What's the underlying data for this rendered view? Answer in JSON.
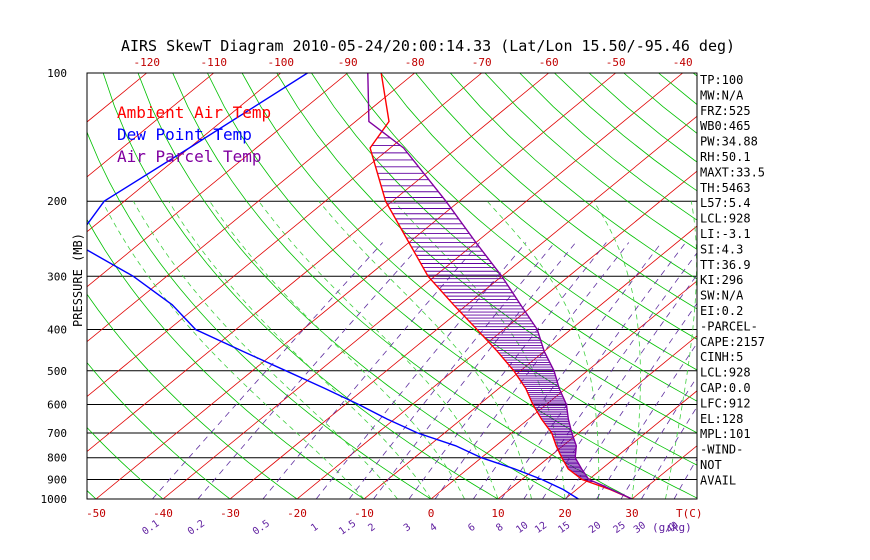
{
  "chart_data": {
    "type": "line",
    "title": "AIRS SkewT Diagram 2010-05-24/20:00:14.33 (Lat/Lon 15.50/-95.46 deg)",
    "ylabel": "PRESSURE (MB)",
    "xlabel": "T(C)",
    "mixing_ratio_unit": "(g/kg)",
    "pressure_levels": [
      100,
      200,
      300,
      400,
      500,
      600,
      700,
      800,
      900,
      1000
    ],
    "pressure_tick_labels": [
      "100",
      "200",
      "300",
      "400",
      "500",
      "600",
      "700",
      "800",
      "900",
      "1000"
    ],
    "ylim": [
      100,
      1000
    ],
    "top_temp_ticks": [
      -120,
      -110,
      -100,
      -90,
      -80,
      -70,
      -60,
      -50,
      -40
    ],
    "top_temp_tick_labels": [
      "-120",
      "-110",
      "-100",
      "-90",
      "-80",
      "-70",
      "-60",
      "-50",
      "-40"
    ],
    "bottom_temp_ticks": [
      -50,
      -40,
      -30,
      -20,
      -10,
      0,
      10,
      20,
      30
    ],
    "bottom_temp_tick_labels": [
      "-50",
      "-40",
      "-30",
      "-20",
      "-10",
      "0",
      "10",
      "20",
      "30"
    ],
    "mixing_ratio_lines": [
      0.1,
      0.2,
      0.5,
      1,
      1.5,
      2,
      3,
      4,
      6,
      8,
      10,
      12,
      15,
      20,
      25,
      30,
      40
    ],
    "mixing_ratio_tick_labels": [
      "0.1",
      "0.2",
      "0.5",
      "1",
      "1.5",
      "2",
      "3",
      "4",
      "6",
      "8",
      "10",
      "12",
      "15",
      "20",
      "25",
      "30",
      "40"
    ],
    "legend": [
      {
        "label": "Ambient Air Temp",
        "color": "#ff0000"
      },
      {
        "label": "Dew Point Temp",
        "color": "#0000ff"
      },
      {
        "label": "Air Parcel Temp",
        "color": "#8000a0"
      }
    ],
    "grid": true,
    "series": [
      {
        "name": "Ambient Air Temp",
        "color": "#ff0000",
        "points": [
          {
            "p": 100,
            "t": -85
          },
          {
            "p": 130,
            "t": -75
          },
          {
            "p": 150,
            "t": -73
          },
          {
            "p": 200,
            "t": -61
          },
          {
            "p": 250,
            "t": -50
          },
          {
            "p": 300,
            "t": -41
          },
          {
            "p": 350,
            "t": -32
          },
          {
            "p": 400,
            "t": -24
          },
          {
            "p": 450,
            "t": -17
          },
          {
            "p": 500,
            "t": -11
          },
          {
            "p": 550,
            "t": -6
          },
          {
            "p": 600,
            "t": -2
          },
          {
            "p": 650,
            "t": 2
          },
          {
            "p": 700,
            "t": 6
          },
          {
            "p": 750,
            "t": 9
          },
          {
            "p": 800,
            "t": 12
          },
          {
            "p": 850,
            "t": 15
          },
          {
            "p": 900,
            "t": 19
          },
          {
            "p": 950,
            "t": 25
          },
          {
            "p": 1000,
            "t": 30
          }
        ]
      },
      {
        "name": "Dew Point Temp",
        "color": "#0000ff",
        "points": [
          {
            "p": 100,
            "t": -96
          },
          {
            "p": 150,
            "t": -100
          },
          {
            "p": 200,
            "t": -103
          },
          {
            "p": 250,
            "t": -100
          },
          {
            "p": 300,
            "t": -85
          },
          {
            "p": 350,
            "t": -74
          },
          {
            "p": 400,
            "t": -66
          },
          {
            "p": 450,
            "t": -55
          },
          {
            "p": 500,
            "t": -45
          },
          {
            "p": 550,
            "t": -36
          },
          {
            "p": 600,
            "t": -28
          },
          {
            "p": 650,
            "t": -21
          },
          {
            "p": 700,
            "t": -14
          },
          {
            "p": 750,
            "t": -6
          },
          {
            "p": 800,
            "t": 0
          },
          {
            "p": 850,
            "t": 7
          },
          {
            "p": 900,
            "t": 13
          },
          {
            "p": 950,
            "t": 18
          },
          {
            "p": 1000,
            "t": 22
          }
        ]
      },
      {
        "name": "Air Parcel Temp",
        "color": "#8000a0",
        "points": [
          {
            "p": 100,
            "t": -87
          },
          {
            "p": 130,
            "t": -78
          },
          {
            "p": 150,
            "t": -68
          },
          {
            "p": 200,
            "t": -52
          },
          {
            "p": 250,
            "t": -40
          },
          {
            "p": 300,
            "t": -30
          },
          {
            "p": 350,
            "t": -22
          },
          {
            "p": 400,
            "t": -15
          },
          {
            "p": 450,
            "t": -10
          },
          {
            "p": 500,
            "t": -5
          },
          {
            "p": 550,
            "t": -1
          },
          {
            "p": 600,
            "t": 3
          },
          {
            "p": 650,
            "t": 6
          },
          {
            "p": 700,
            "t": 9
          },
          {
            "p": 750,
            "t": 12
          },
          {
            "p": 800,
            "t": 14
          },
          {
            "p": 850,
            "t": 17
          },
          {
            "p": 900,
            "t": 20
          },
          {
            "p": 928,
            "t": 23
          },
          {
            "p": 1000,
            "t": 30
          }
        ]
      }
    ],
    "indices": [
      "TP:100",
      "MW:N/A",
      "FRZ:525",
      "WB0:465",
      "PW:34.88",
      "RH:50.1",
      "MAXT:33.5",
      "TH:5463",
      "L57:5.4",
      "LCL:928",
      "LI:-3.1",
      "SI:4.3",
      "TT:36.9",
      "KI:296",
      "SW:N/A",
      "EI:0.2",
      "-PARCEL-",
      "CAPE:2157",
      "CINH:5",
      "LCL:928",
      "CAP:0.0",
      "LFC:912",
      "EL:128",
      "MPL:101",
      "-WIND-",
      "NOT",
      "AVAIL"
    ]
  }
}
